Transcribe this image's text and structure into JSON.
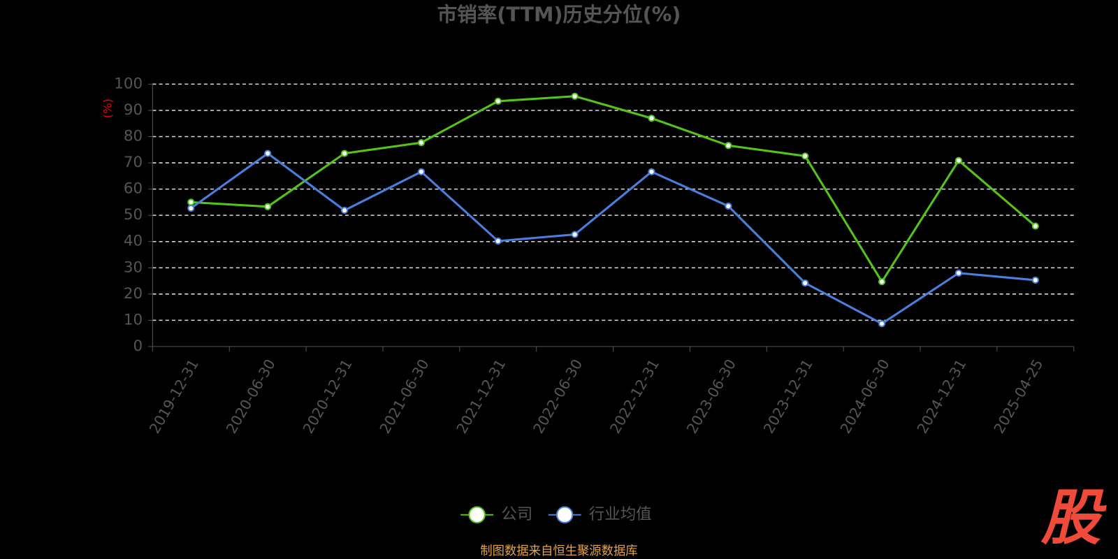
{
  "chart_data": {
    "type": "line",
    "title": "市销率(TTM)历史分位(%)",
    "y_label": "(%)",
    "categories": [
      "2019-12-31",
      "2020-06-30",
      "2020-12-31",
      "2021-06-30",
      "2021-12-31",
      "2022-06-30",
      "2022-12-31",
      "2023-06-30",
      "2023-12-31",
      "2024-06-30",
      "2024-12-31",
      "2025-04-25"
    ],
    "series": [
      {
        "name": "公司",
        "color": "#52c41a",
        "values": [
          55,
          53.3,
          73.6,
          77.7,
          93.5,
          95.4,
          87.0,
          76.6,
          72.6,
          24.7,
          70.9,
          45.9
        ]
      },
      {
        "name": "行业均值",
        "color": "#4a7fe0",
        "values": [
          52.7,
          73.6,
          51.9,
          66.6,
          40.2,
          42.7,
          66.6,
          53.5,
          24.2,
          8.7,
          28.0,
          25.3
        ]
      }
    ],
    "ylim": [
      0,
      100
    ],
    "yticks": [
      0,
      10,
      20,
      30,
      40,
      50,
      60,
      70,
      80,
      90,
      100
    ],
    "grid": true,
    "source": "制图数据来自恒生聚源数据库",
    "watermark": "股"
  }
}
